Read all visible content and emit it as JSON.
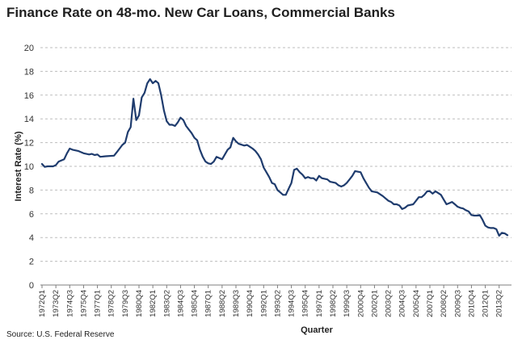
{
  "chart_data": {
    "type": "line",
    "title": "Finance Rate on 48-mo. New Car Loans, Commercial Banks",
    "xlabel": "Quarter",
    "ylabel": "Interest Rate (%)",
    "ylim": [
      0,
      20
    ],
    "yticks": [
      0,
      2,
      4,
      6,
      8,
      10,
      12,
      14,
      16,
      18,
      20
    ],
    "grid": "horizontal-dashed",
    "legend": "none",
    "source": "Source:  U.S. Federal Reserve",
    "x_tick_labels": [
      "1972Q1",
      "1973Q2",
      "1974Q3",
      "1975Q4",
      "1977Q1",
      "1978Q2",
      "1979Q3",
      "1980Q4",
      "1982Q1",
      "1983Q2",
      "1984Q3",
      "1985Q4",
      "1987Q1",
      "1988Q2",
      "1989Q3",
      "1990Q4",
      "1992Q1",
      "1993Q2",
      "1994Q3",
      "1995Q4",
      "1997Q1",
      "1998Q2",
      "1999Q3",
      "2000Q4",
      "2002Q1",
      "2003Q2",
      "2004Q3",
      "2005Q4",
      "2007Q1",
      "2008Q2",
      "2009Q3",
      "2010Q4",
      "2012Q1",
      "2013Q2"
    ],
    "series": [
      {
        "name": "Finance Rate",
        "color": "#1f3c6e",
        "points": [
          [
            "1972Q1",
            10.2
          ],
          [
            "1972Q2",
            9.95
          ],
          [
            "1972Q3",
            10.0
          ],
          [
            "1973Q1",
            10.0
          ],
          [
            "1973Q2",
            10.1
          ],
          [
            "1973Q3",
            10.4
          ],
          [
            "1974Q1",
            10.6
          ],
          [
            "1974Q2",
            11.1
          ],
          [
            "1974Q3",
            11.5
          ],
          [
            "1974Q4",
            11.4
          ],
          [
            "1975Q2",
            11.3
          ],
          [
            "1975Q4",
            11.1
          ],
          [
            "1976Q2",
            11.0
          ],
          [
            "1976Q3",
            11.05
          ],
          [
            "1976Q4",
            10.95
          ],
          [
            "1977Q1",
            11.0
          ],
          [
            "1977Q2",
            10.8
          ],
          [
            "1977Q4",
            10.85
          ],
          [
            "1978Q3",
            10.9
          ],
          [
            "1978Q4",
            11.2
          ],
          [
            "1979Q1",
            11.5
          ],
          [
            "1979Q2",
            11.8
          ],
          [
            "1979Q3",
            12.0
          ],
          [
            "1979Q4",
            12.9
          ],
          [
            "1980Q1",
            13.3
          ],
          [
            "1980Q2",
            15.7
          ],
          [
            "1980Q3",
            13.9
          ],
          [
            "1980Q4",
            14.3
          ],
          [
            "1981Q1",
            15.8
          ],
          [
            "1981Q2",
            16.2
          ],
          [
            "1981Q3",
            17.0
          ],
          [
            "1981Q4",
            17.35
          ],
          [
            "1982Q1",
            17.0
          ],
          [
            "1982Q2",
            17.2
          ],
          [
            "1982Q3",
            17.0
          ],
          [
            "1982Q4",
            16.0
          ],
          [
            "1983Q1",
            14.7
          ],
          [
            "1983Q2",
            13.8
          ],
          [
            "1983Q3",
            13.5
          ],
          [
            "1983Q4",
            13.5
          ],
          [
            "1984Q1",
            13.4
          ],
          [
            "1984Q2",
            13.7
          ],
          [
            "1984Q3",
            14.1
          ],
          [
            "1984Q4",
            13.9
          ],
          [
            "1985Q1",
            13.4
          ],
          [
            "1985Q2",
            13.1
          ],
          [
            "1985Q3",
            12.8
          ],
          [
            "1985Q4",
            12.4
          ],
          [
            "1986Q1",
            12.2
          ],
          [
            "1986Q2",
            11.4
          ],
          [
            "1986Q3",
            10.8
          ],
          [
            "1986Q4",
            10.4
          ],
          [
            "1987Q1",
            10.25
          ],
          [
            "1987Q2",
            10.2
          ],
          [
            "1987Q3",
            10.4
          ],
          [
            "1987Q4",
            10.8
          ],
          [
            "1988Q1",
            10.7
          ],
          [
            "1988Q2",
            10.6
          ],
          [
            "1988Q3",
            11.0
          ],
          [
            "1988Q4",
            11.4
          ],
          [
            "1989Q1",
            11.6
          ],
          [
            "1989Q2",
            12.4
          ],
          [
            "1989Q3",
            12.1
          ],
          [
            "1989Q4",
            11.9
          ],
          [
            "1990Q2",
            11.75
          ],
          [
            "1990Q3",
            11.8
          ],
          [
            "1990Q4",
            11.65
          ],
          [
            "1991Q1",
            11.5
          ],
          [
            "1991Q2",
            11.3
          ],
          [
            "1991Q3",
            11.0
          ],
          [
            "1991Q4",
            10.6
          ],
          [
            "1992Q1",
            9.9
          ],
          [
            "1992Q2",
            9.5
          ],
          [
            "1992Q3",
            9.1
          ],
          [
            "1992Q4",
            8.6
          ],
          [
            "1993Q1",
            8.5
          ],
          [
            "1993Q2",
            8.0
          ],
          [
            "1993Q3",
            7.8
          ],
          [
            "1993Q4",
            7.6
          ],
          [
            "1994Q1",
            7.6
          ],
          [
            "1994Q2",
            8.1
          ],
          [
            "1994Q3",
            8.6
          ],
          [
            "1994Q4",
            9.7
          ],
          [
            "1995Q1",
            9.8
          ],
          [
            "1995Q2",
            9.5
          ],
          [
            "1995Q3",
            9.3
          ],
          [
            "1995Q4",
            9.0
          ],
          [
            "1996Q1",
            9.1
          ],
          [
            "1996Q2",
            9.0
          ],
          [
            "1996Q3",
            9.0
          ],
          [
            "1996Q4",
            8.8
          ],
          [
            "1997Q1",
            9.2
          ],
          [
            "1997Q2",
            9.0
          ],
          [
            "1997Q4",
            8.9
          ],
          [
            "1998Q1",
            8.7
          ],
          [
            "1998Q3",
            8.6
          ],
          [
            "1998Q4",
            8.4
          ],
          [
            "1999Q1",
            8.3
          ],
          [
            "1999Q2",
            8.4
          ],
          [
            "1999Q3",
            8.6
          ],
          [
            "1999Q4",
            8.9
          ],
          [
            "2000Q1",
            9.2
          ],
          [
            "2000Q2",
            9.6
          ],
          [
            "2000Q4",
            9.5
          ],
          [
            "2001Q1",
            9.0
          ],
          [
            "2001Q2",
            8.6
          ],
          [
            "2001Q3",
            8.2
          ],
          [
            "2001Q4",
            7.9
          ],
          [
            "2002Q2",
            7.8
          ],
          [
            "2002Q4",
            7.5
          ],
          [
            "2003Q1",
            7.3
          ],
          [
            "2003Q2",
            7.1
          ],
          [
            "2003Q3",
            7.0
          ],
          [
            "2003Q4",
            6.8
          ],
          [
            "2004Q1",
            6.8
          ],
          [
            "2004Q2",
            6.7
          ],
          [
            "2004Q3",
            6.4
          ],
          [
            "2004Q4",
            6.5
          ],
          [
            "2005Q1",
            6.7
          ],
          [
            "2005Q3",
            6.8
          ],
          [
            "2005Q4",
            7.1
          ],
          [
            "2006Q1",
            7.4
          ],
          [
            "2006Q2",
            7.4
          ],
          [
            "2006Q3",
            7.6
          ],
          [
            "2006Q4",
            7.9
          ],
          [
            "2007Q1",
            7.9
          ],
          [
            "2007Q2",
            7.7
          ],
          [
            "2007Q3",
            7.9
          ],
          [
            "2007Q4",
            7.75
          ],
          [
            "2008Q1",
            7.6
          ],
          [
            "2008Q2",
            7.2
          ],
          [
            "2008Q3",
            6.8
          ],
          [
            "2008Q4",
            6.9
          ],
          [
            "2009Q1",
            7.0
          ],
          [
            "2009Q2",
            6.8
          ],
          [
            "2009Q3",
            6.6
          ],
          [
            "2009Q4",
            6.5
          ],
          [
            "2010Q1",
            6.45
          ],
          [
            "2010Q2",
            6.3
          ],
          [
            "2010Q3",
            6.2
          ],
          [
            "2010Q4",
            5.9
          ],
          [
            "2011Q1",
            5.85
          ],
          [
            "2011Q2",
            5.85
          ],
          [
            "2011Q3",
            5.9
          ],
          [
            "2011Q4",
            5.5
          ],
          [
            "2012Q1",
            5.0
          ],
          [
            "2012Q2",
            4.85
          ],
          [
            "2012Q3",
            4.8
          ],
          [
            "2012Q4",
            4.8
          ],
          [
            "2013Q1",
            4.7
          ],
          [
            "2013Q2",
            4.15
          ],
          [
            "2013Q3",
            4.4
          ],
          [
            "2013Q4",
            4.35
          ],
          [
            "2014Q1",
            4.2
          ]
        ]
      }
    ]
  }
}
